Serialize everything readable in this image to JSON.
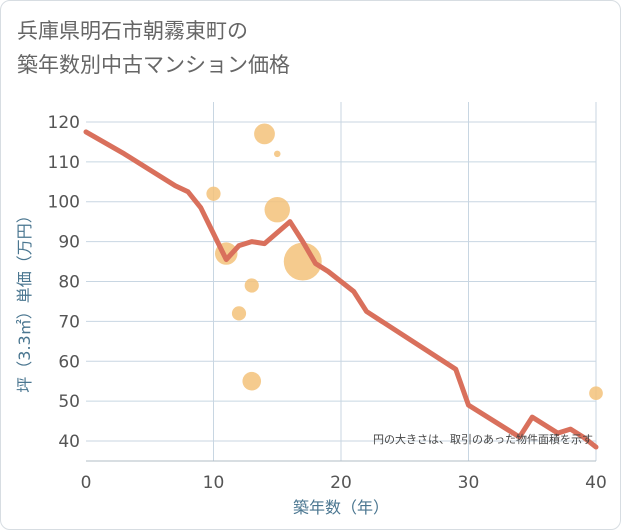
{
  "title_line1": "兵庫県明石市朝霧東町の",
  "title_line2": "築年数別中古マンション価格",
  "chart_data": {
    "type": "scatter",
    "title": "兵庫県明石市朝霧東町の築年数別中古マンション価格",
    "xlabel": "築年数（年）",
    "ylabel": "坪（3.3㎡）単価（万円）",
    "xlim": [
      0,
      40
    ],
    "ylim": [
      35,
      125
    ],
    "x_ticks": [
      0,
      10,
      20,
      30,
      40
    ],
    "y_ticks": [
      40,
      50,
      60,
      70,
      80,
      90,
      100,
      110,
      120
    ],
    "grid": true,
    "annotation": "円の大きさは、取引のあった物件面積を示す",
    "colors": {
      "line": "#d9705c",
      "bubble": "#f3c27a",
      "grid": "#c8d6e2",
      "text": "#555555",
      "label": "#4a7690"
    },
    "series": [
      {
        "name": "trend",
        "type": "line",
        "x": [
          0,
          3,
          7,
          8,
          9,
          10,
          11,
          12,
          13,
          14,
          16,
          17,
          18,
          19,
          20,
          21,
          22,
          29,
          30,
          34,
          35,
          37,
          38,
          39,
          40
        ],
        "y": [
          117.5,
          112,
          104,
          102.5,
          98.5,
          92,
          85.5,
          89,
          90,
          89.5,
          95,
          90,
          84.5,
          82.5,
          80,
          77.5,
          72.5,
          58,
          49,
          41,
          46,
          42,
          43,
          41,
          38.5
        ]
      },
      {
        "name": "transactions",
        "type": "bubble",
        "points": [
          {
            "x": 14,
            "y": 117,
            "size": 3
          },
          {
            "x": 15,
            "y": 112,
            "size": 0.3
          },
          {
            "x": 10,
            "y": 102,
            "size": 1.4
          },
          {
            "x": 15,
            "y": 98,
            "size": 4.5
          },
          {
            "x": 11,
            "y": 87,
            "size": 3.5
          },
          {
            "x": 17,
            "y": 85,
            "size": 10
          },
          {
            "x": 13,
            "y": 79,
            "size": 1.4
          },
          {
            "x": 12,
            "y": 72,
            "size": 1.4
          },
          {
            "x": 13,
            "y": 55,
            "size": 2.4
          },
          {
            "x": 40,
            "y": 52,
            "size": 1.3
          }
        ]
      }
    ]
  }
}
